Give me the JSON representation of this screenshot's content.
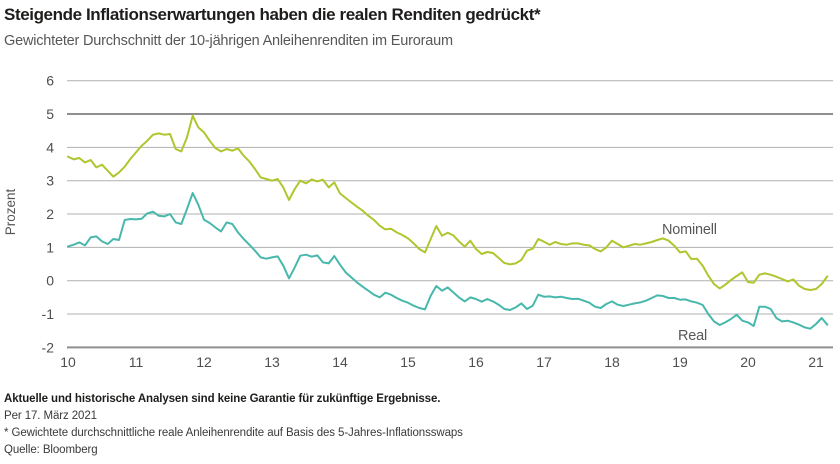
{
  "header": {
    "title": "Steigende Inflationserwartungen haben die realen Renditen gedrückt*",
    "subtitle": "Gewichteter Durchschnitt der 10-jährigen Anleihenrenditen im Euroraum"
  },
  "chart_data": {
    "type": "line",
    "title": "Steigende Inflationserwartungen haben die realen Renditen gedrückt*",
    "subtitle": "Gewichteter Durchschnitt der 10-jährigen Anleihenrenditen im Euroraum",
    "xlabel": "",
    "ylabel": "Prozent",
    "ylim": [
      -2,
      6
    ],
    "y_ticks": [
      6,
      5,
      4,
      3,
      2,
      1,
      0,
      -1,
      -2
    ],
    "x_tick_labels": [
      "10",
      "11",
      "12",
      "13",
      "14",
      "15",
      "16",
      "17",
      "18",
      "19",
      "20",
      "21"
    ],
    "x_start_year": 2010,
    "points_per_year": 12,
    "grid": true,
    "emphasized_gridlines": [
      5,
      -2
    ],
    "legend_position": "inline-labels",
    "colors": {
      "nominal_line": "#b1c52e",
      "real_line": "#48b8ac",
      "gridline": "#b1b1b1",
      "gridline_emphasis": "#8f8f8f",
      "tick_label": "#4f4f4f",
      "series_label": "#58585a"
    },
    "series": [
      {
        "name": "Nominell",
        "color": "#b1c52e",
        "values": [
          3.72,
          3.64,
          3.68,
          3.55,
          3.62,
          3.4,
          3.48,
          3.3,
          3.12,
          3.25,
          3.42,
          3.65,
          3.85,
          4.05,
          4.2,
          4.38,
          4.42,
          4.38,
          4.4,
          3.95,
          3.88,
          4.3,
          4.95,
          4.6,
          4.45,
          4.2,
          3.98,
          3.88,
          3.95,
          3.9,
          3.97,
          3.75,
          3.58,
          3.35,
          3.1,
          3.05,
          3.0,
          3.05,
          2.8,
          2.42,
          2.75,
          3.0,
          2.92,
          3.04,
          2.98,
          3.03,
          2.8,
          2.95,
          2.62,
          2.48,
          2.35,
          2.22,
          2.1,
          1.95,
          1.82,
          1.65,
          1.54,
          1.56,
          1.45,
          1.37,
          1.27,
          1.12,
          0.95,
          0.85,
          1.25,
          1.64,
          1.35,
          1.44,
          1.36,
          1.18,
          1.02,
          1.2,
          0.95,
          0.8,
          0.86,
          0.83,
          0.68,
          0.53,
          0.49,
          0.52,
          0.62,
          0.9,
          0.96,
          1.25,
          1.17,
          1.08,
          1.16,
          1.1,
          1.08,
          1.12,
          1.12,
          1.08,
          1.06,
          0.95,
          0.88,
          1.0,
          1.2,
          1.1,
          1.0,
          1.05,
          1.1,
          1.08,
          1.12,
          1.16,
          1.22,
          1.27,
          1.2,
          1.05,
          0.85,
          0.88,
          0.65,
          0.66,
          0.45,
          0.15,
          -0.1,
          -0.23,
          -0.12,
          0.02,
          0.14,
          0.25,
          -0.04,
          -0.06,
          0.18,
          0.22,
          0.18,
          0.12,
          0.05,
          -0.02,
          0.04,
          -0.15,
          -0.25,
          -0.28,
          -0.25,
          -0.1,
          0.13
        ]
      },
      {
        "name": "Real",
        "color": "#48b8ac",
        "values": [
          1.03,
          1.08,
          1.15,
          1.06,
          1.3,
          1.33,
          1.18,
          1.1,
          1.25,
          1.22,
          1.82,
          1.85,
          1.84,
          1.86,
          2.02,
          2.07,
          1.95,
          1.93,
          2.0,
          1.75,
          1.7,
          2.15,
          2.63,
          2.28,
          1.83,
          1.73,
          1.6,
          1.48,
          1.75,
          1.7,
          1.45,
          1.25,
          1.08,
          0.9,
          0.7,
          0.66,
          0.7,
          0.73,
          0.45,
          0.07,
          0.4,
          0.75,
          0.78,
          0.72,
          0.76,
          0.55,
          0.52,
          0.74,
          0.48,
          0.25,
          0.1,
          -0.05,
          -0.18,
          -0.3,
          -0.42,
          -0.5,
          -0.36,
          -0.42,
          -0.52,
          -0.6,
          -0.66,
          -0.75,
          -0.82,
          -0.86,
          -0.45,
          -0.16,
          -0.3,
          -0.2,
          -0.35,
          -0.5,
          -0.62,
          -0.5,
          -0.55,
          -0.63,
          -0.55,
          -0.62,
          -0.72,
          -0.85,
          -0.88,
          -0.8,
          -0.68,
          -0.85,
          -0.75,
          -0.42,
          -0.48,
          -0.47,
          -0.5,
          -0.48,
          -0.52,
          -0.55,
          -0.54,
          -0.6,
          -0.66,
          -0.78,
          -0.82,
          -0.7,
          -0.62,
          -0.72,
          -0.76,
          -0.72,
          -0.68,
          -0.65,
          -0.6,
          -0.52,
          -0.44,
          -0.46,
          -0.52,
          -0.52,
          -0.57,
          -0.56,
          -0.62,
          -0.66,
          -0.73,
          -1.0,
          -1.22,
          -1.33,
          -1.25,
          -1.15,
          -1.02,
          -1.2,
          -1.25,
          -1.36,
          -0.78,
          -0.78,
          -0.85,
          -1.12,
          -1.22,
          -1.2,
          -1.25,
          -1.32,
          -1.4,
          -1.44,
          -1.3,
          -1.12,
          -1.32
        ]
      }
    ]
  },
  "footer": {
    "disclaimer": "Aktuelle und historische Analysen sind keine Garantie für zukünftige Ergebnisse.",
    "as_of": "Per 17. März 2021",
    "footnote": "* Gewichtete durchschnittliche reale Anleihenrendite auf Basis des 5-Jahres-Inflationsswaps",
    "source": "Quelle: Bloomberg"
  }
}
